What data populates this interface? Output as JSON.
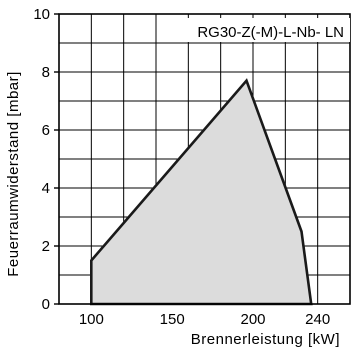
{
  "chart_data": {
    "type": "area",
    "title": "RG30-Z(-M)-L-Nb- LN",
    "xlabel": "Brennerleistung  [kW]",
    "ylabel": "Feuerraumwiderstand [mbar]",
    "xlim": [
      80,
      260
    ],
    "ylim": [
      0,
      10
    ],
    "x_major_ticks": [
      "100",
      "150",
      "200",
      "240"
    ],
    "x_major_tick_values": [
      100,
      150,
      200,
      240
    ],
    "y_major_ticks": [
      "0",
      "2",
      "4",
      "6",
      "8",
      "10"
    ],
    "y_major_tick_values": [
      0,
      2,
      4,
      6,
      8,
      10
    ],
    "grid": true,
    "grid_x_step": 20,
    "grid_y_step": 1,
    "fill_color": "#dcdcdc",
    "line_color": "#1a1a1a",
    "series": [
      {
        "x": [
          100,
          100,
          196,
          230,
          236,
          100
        ],
        "y": [
          0,
          1.5,
          7.7,
          2.5,
          0,
          0
        ]
      }
    ]
  }
}
